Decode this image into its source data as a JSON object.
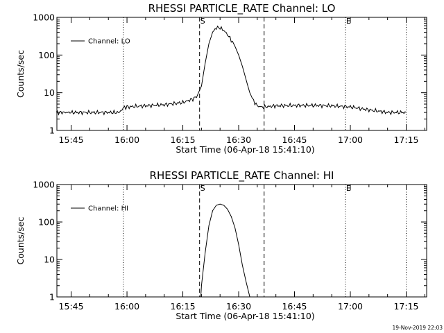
{
  "footer": "19-Nov-2019 22:03",
  "chart_data": [
    {
      "type": "line",
      "title": "RHESSI PARTICLE_RATE Channel: LO",
      "xlabel": "Start Time (06-Apr-18 15:41:10)",
      "ylabel": "Counts/sec",
      "yscale": "log",
      "ylim": [
        1,
        1000
      ],
      "yticks": [
        "1",
        "10",
        "100",
        "1000"
      ],
      "xlim_minutes": [
        "15:41:10",
        "17:20:30"
      ],
      "xticks": [
        "15:45",
        "16:00",
        "16:15",
        "16:30",
        "16:45",
        "17:00",
        "17:15"
      ],
      "legend": "Channel: LO",
      "legend_position": "top-left",
      "markers": [
        {
          "label": "S",
          "time": "16:19:30",
          "style": "dashed"
        },
        {
          "label": "",
          "time": "16:36:50",
          "style": "dashed"
        },
        {
          "label": "",
          "time": "15:59:00",
          "style": "dotted"
        },
        {
          "label": "E",
          "time": "16:58:40",
          "style": "dotted"
        },
        {
          "label": "",
          "time": "17:15:00",
          "style": "dotted"
        }
      ],
      "series": [
        {
          "x": [
            "15:41",
            "15:45",
            "15:50",
            "15:55",
            "15:58",
            "15:59",
            "16:00",
            "16:05",
            "16:10",
            "16:15",
            "16:18",
            "16:19",
            "16:20",
            "16:21",
            "16:22",
            "16:23",
            "16:24",
            "16:25",
            "16:26",
            "16:27",
            "16:28",
            "16:29",
            "16:30",
            "16:31",
            "16:32",
            "16:33",
            "16:34",
            "16:35",
            "16:36",
            "16:37",
            "16:40",
            "16:45",
            "16:50",
            "16:55",
            "17:00",
            "17:05",
            "17:10",
            "17:15"
          ],
          "values": [
            3,
            3,
            3,
            3,
            3,
            4,
            4.2,
            4.5,
            4.8,
            5.5,
            7,
            9,
            15,
            60,
            200,
            400,
            530,
            530,
            450,
            350,
            250,
            170,
            100,
            50,
            22,
            10,
            6,
            4.5,
            4.2,
            4.2,
            4.5,
            4.6,
            4.6,
            4.5,
            4.2,
            3.5,
            3,
            3
          ]
        }
      ]
    },
    {
      "type": "line",
      "title": "RHESSI PARTICLE_RATE Channel: HI",
      "xlabel": "Start Time (06-Apr-18 15:41:10)",
      "ylabel": "Counts/sec",
      "yscale": "log",
      "ylim": [
        1,
        1000
      ],
      "yticks": [
        "1",
        "10",
        "100",
        "1000"
      ],
      "xlim_minutes": [
        "15:41:10",
        "17:20:30"
      ],
      "xticks": [
        "15:45",
        "16:00",
        "16:15",
        "16:30",
        "16:45",
        "17:00",
        "17:15"
      ],
      "legend": "Channel: HI",
      "legend_position": "top-left",
      "markers": [
        {
          "label": "S",
          "time": "16:19:30",
          "style": "dashed"
        },
        {
          "label": "",
          "time": "16:36:50",
          "style": "dashed"
        },
        {
          "label": "",
          "time": "15:59:00",
          "style": "dotted"
        },
        {
          "label": "E",
          "time": "16:58:40",
          "style": "dotted"
        },
        {
          "label": "",
          "time": "17:15:00",
          "style": "dotted"
        }
      ],
      "series": [
        {
          "x": [
            "16:19:50",
            "16:20",
            "16:21",
            "16:22",
            "16:23",
            "16:24",
            "16:25",
            "16:26",
            "16:27",
            "16:28",
            "16:29",
            "16:30",
            "16:31",
            "16:32",
            "16:33"
          ],
          "values": [
            1,
            2,
            15,
            80,
            200,
            280,
            300,
            280,
            220,
            140,
            70,
            25,
            7,
            2.5,
            1
          ]
        }
      ]
    }
  ]
}
